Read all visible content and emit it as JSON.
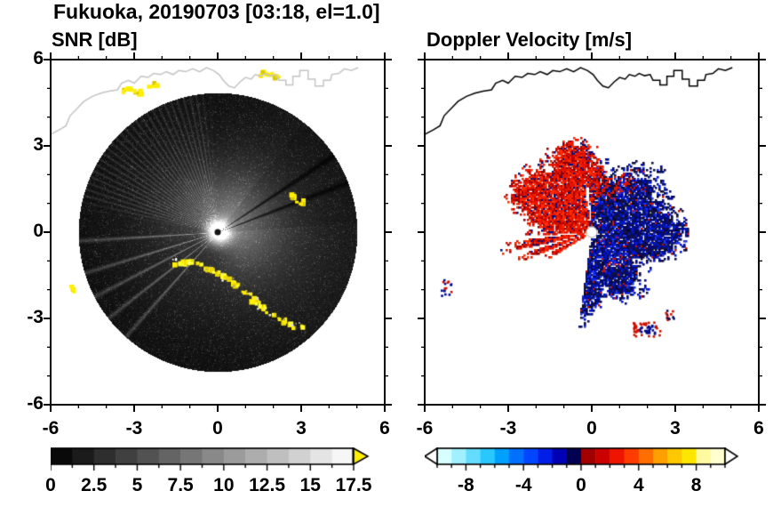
{
  "title": "Fukuoka, 20190703 [03:18, el=1.0]",
  "panels": {
    "snr": {
      "subtitle": "SNR [dB]"
    },
    "doppler": {
      "subtitle": "Doppler Velocity [m/s]"
    }
  },
  "colors": {
    "frame": "#000000",
    "text": "#000000",
    "background": "#ffffff",
    "snr_clutter": "#ffee00",
    "snr_over_arrow": "#ffee00",
    "approaching_red": "#e51400",
    "receding_blue": "#000a8c",
    "coast_snr": "#c4c4c4",
    "coast_doppler": "#000000"
  },
  "coastline": [
    [
      -6.0,
      3.4
    ],
    [
      -5.7,
      3.55
    ],
    [
      -5.45,
      3.7
    ],
    [
      -5.3,
      4.05
    ],
    [
      -5.05,
      4.3
    ],
    [
      -4.8,
      4.55
    ],
    [
      -4.5,
      4.72
    ],
    [
      -4.2,
      4.83
    ],
    [
      -3.9,
      4.9
    ],
    [
      -3.6,
      4.95
    ],
    [
      -3.45,
      5.18
    ],
    [
      -3.2,
      5.28
    ],
    [
      -3.0,
      5.18
    ],
    [
      -2.75,
      5.42
    ],
    [
      -2.5,
      5.38
    ],
    [
      -2.3,
      5.52
    ],
    [
      -2.05,
      5.48
    ],
    [
      -1.85,
      5.58
    ],
    [
      -1.6,
      5.48
    ],
    [
      -1.4,
      5.62
    ],
    [
      -1.15,
      5.58
    ],
    [
      -0.9,
      5.68
    ],
    [
      -0.65,
      5.58
    ],
    [
      -0.4,
      5.72
    ],
    [
      -0.15,
      5.62
    ],
    [
      0.05,
      5.48
    ],
    [
      0.2,
      5.28
    ],
    [
      0.4,
      5.08
    ],
    [
      0.6,
      5.02
    ],
    [
      0.8,
      5.22
    ],
    [
      1.0,
      5.38
    ],
    [
      1.2,
      5.32
    ],
    [
      1.35,
      5.48
    ],
    [
      1.55,
      5.42
    ],
    [
      1.7,
      5.52
    ],
    [
      1.9,
      5.44
    ],
    [
      2.1,
      5.48
    ],
    [
      2.2,
      5.28
    ],
    [
      2.45,
      5.28
    ],
    [
      2.45,
      5.12
    ],
    [
      2.7,
      5.12
    ],
    [
      2.7,
      5.42
    ],
    [
      2.95,
      5.42
    ],
    [
      2.95,
      5.62
    ],
    [
      3.25,
      5.62
    ],
    [
      3.25,
      5.32
    ],
    [
      3.5,
      5.32
    ],
    [
      3.5,
      5.08
    ],
    [
      3.8,
      5.08
    ],
    [
      3.8,
      5.28
    ],
    [
      4.05,
      5.28
    ],
    [
      4.1,
      5.48
    ],
    [
      4.35,
      5.52
    ],
    [
      4.55,
      5.68
    ],
    [
      4.8,
      5.62
    ],
    [
      5.05,
      5.72
    ]
  ],
  "chart_data": [
    {
      "type": "heatmap",
      "name": "snr_ppi",
      "title": "SNR [dB]",
      "xlim": [
        -6,
        6
      ],
      "ylim": [
        -6,
        6
      ],
      "xticks": [
        -6,
        -3,
        0,
        3,
        6
      ],
      "yticks": [
        -6,
        -3,
        0,
        3,
        6
      ],
      "xtick_labels": [
        "-6",
        "-3",
        "0",
        "3",
        "6"
      ],
      "ytick_labels": [
        "-6",
        "-3",
        "0",
        "3",
        "6"
      ],
      "minor_tick_step": 1,
      "scan_radius": 4.9,
      "colorbar": {
        "range": [
          0,
          17.5
        ],
        "n_steps": 14,
        "tick_values": [
          0,
          2.5,
          5,
          7.5,
          10,
          12.5,
          15,
          17.5
        ],
        "tick_labels": [
          "0",
          "2.5",
          "5",
          "7.5",
          "10",
          "12.5",
          "15",
          "17.5"
        ],
        "start_color": "#000000",
        "end_color": "#ffffff",
        "over_arrow_color": "#ffee00"
      },
      "features": {
        "description": "black weak-echo disc, bright glow at radar center, gray ray fan to NW, thin bright rays to WSW, dark blocked rays to ENE, yellow ground clutter arc to the S-SE",
        "clutter_arc": [
          [
            -1.6,
            -1.0
          ],
          [
            -0.9,
            -1.0
          ],
          [
            -0.2,
            -1.3
          ],
          [
            0.4,
            -1.6
          ],
          [
            0.9,
            -2.0
          ],
          [
            1.5,
            -2.5
          ],
          [
            2.1,
            -2.9
          ],
          [
            2.6,
            -3.2
          ],
          [
            3.1,
            -3.3
          ]
        ],
        "clutter_spots": [
          [
            -5.2,
            -1.9
          ],
          [
            2.9,
            1.1
          ],
          [
            2.6,
            1.3
          ],
          [
            -3.3,
            5.0
          ],
          [
            -2.9,
            4.9
          ],
          [
            -2.4,
            5.2
          ],
          [
            1.6,
            5.6
          ],
          [
            2.0,
            5.5
          ]
        ]
      }
    },
    {
      "type": "heatmap",
      "name": "doppler_ppi",
      "title": "Doppler Velocity [m/s]",
      "xlim": [
        -6,
        6
      ],
      "ylim": [
        -6,
        6
      ],
      "xticks": [
        -6,
        -3,
        0,
        3,
        6
      ],
      "xtick_labels": [
        "-6",
        "-3",
        "0",
        "3",
        "6"
      ],
      "minor_tick_step": 1,
      "colorbar": {
        "range": [
          -10,
          10
        ],
        "n_steps": 20,
        "tick_values": [
          -8,
          -4,
          0,
          4,
          8
        ],
        "tick_labels": [
          "-8",
          "-4",
          "0",
          "4",
          "8"
        ],
        "palette": [
          "#d8ffff",
          "#a0f0ff",
          "#64dcff",
          "#28c8ff",
          "#00a0ff",
          "#0070ff",
          "#0046ff",
          "#001ee6",
          "#0000b4",
          "#000050",
          "#a00000",
          "#cd0000",
          "#ef1400",
          "#ff3c00",
          "#ff6e00",
          "#ffa000",
          "#ffc800",
          "#ffe600",
          "#fff9a0",
          "#ffffd0"
        ],
        "under_arrow_color": "#ffffff",
        "over_arrow_color": "#ffffff"
      },
      "features": {
        "approaching_sector_deg": [
          84,
          184
        ],
        "receding_sector_deg": [
          -98,
          84
        ],
        "echo_radius": 2.7,
        "spokes_deg": [
          [
            186.5,
            193.5,
            2.7
          ],
          [
            197,
            202.5,
            2.3
          ],
          [
            206.5,
            211.5,
            1.7
          ]
        ],
        "outlier_clusters": [
          [
            -5.25,
            -1.9
          ],
          [
            1.95,
            -3.35
          ],
          [
            2.75,
            -2.85
          ]
        ]
      }
    }
  ]
}
